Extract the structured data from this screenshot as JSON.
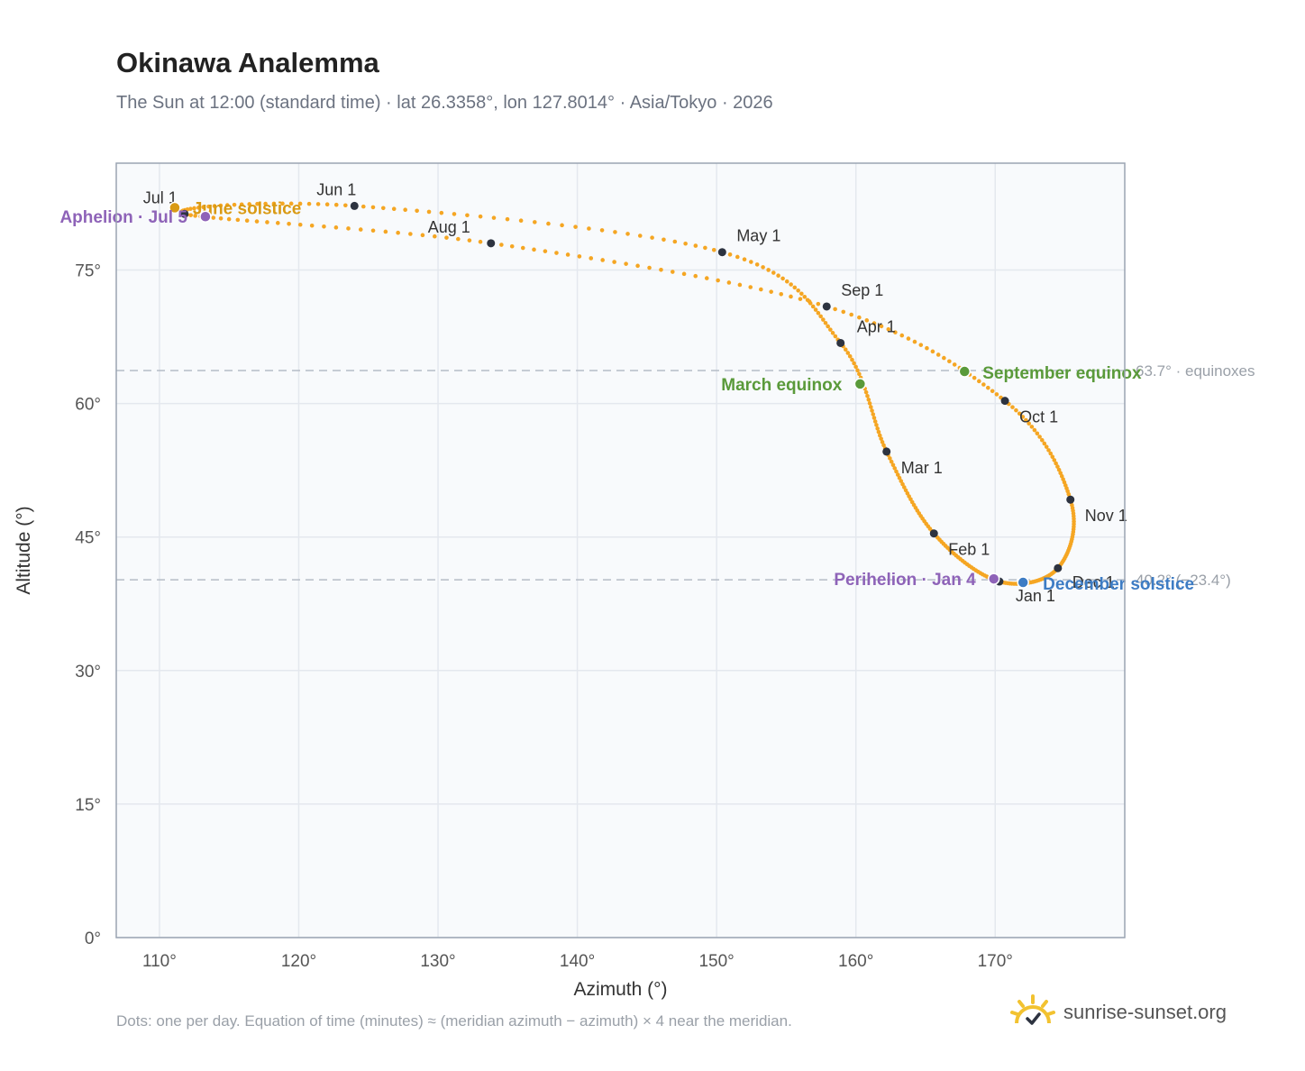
{
  "title": "Okinawa Analemma",
  "subtitle": "The Sun at 12:00 (standard time) · lat 26.3358°, lon 127.8014° · Asia/Tokyo · 2026",
  "footnote": "Dots: one per day. Equation of time (minutes) ≈ (meridian azimuth − azimuth) × 4 near the meridian.",
  "brand": {
    "name": "sunrise-sunset.org",
    "icon": "sun-check-icon"
  },
  "colors": {
    "curve": "#f5a623",
    "month": "#2d3340",
    "equinox": "#5a9a3a",
    "solstice_june": "#d99a14",
    "solstice_dec": "#3d7cc4",
    "apsis": "#8e63b8",
    "refline": "#b5bcc6",
    "plot_bg": "#f8fafc",
    "frame": "#9aa4b2",
    "grid": "#e4e8ee"
  },
  "chart_data": {
    "type": "scatter",
    "title": "Okinawa Analemma",
    "xlabel": "Azimuth (°)",
    "ylabel": "Altitude (°)",
    "xlim": [
      106.9,
      179.3
    ],
    "ylim": [
      0,
      87
    ],
    "xticks": [
      110,
      120,
      130,
      140,
      150,
      160,
      170
    ],
    "xtick_labels": [
      "110°",
      "120°",
      "130°",
      "140°",
      "150°",
      "160°",
      "170°"
    ],
    "yticks": [
      0,
      15,
      30,
      45,
      60,
      75
    ],
    "ytick_labels": [
      "0°",
      "15°",
      "30°",
      "45°",
      "60°",
      "75°"
    ],
    "grid": true,
    "months": [
      {
        "label": "Jan 1",
        "az": 170.3,
        "alt": 40.0
      },
      {
        "label": "Feb 1",
        "az": 165.6,
        "alt": 45.4
      },
      {
        "label": "Mar 1",
        "az": 162.2,
        "alt": 54.6
      },
      {
        "label": "Apr 1",
        "az": 158.9,
        "alt": 66.8
      },
      {
        "label": "May 1",
        "az": 150.4,
        "alt": 77.0
      },
      {
        "label": "Jun 1",
        "az": 124.0,
        "alt": 82.2
      },
      {
        "label": "Jul 1",
        "az": 111.8,
        "alt": 81.3
      },
      {
        "label": "Aug 1",
        "az": 133.8,
        "alt": 78.0
      },
      {
        "label": "Sep 1",
        "az": 157.9,
        "alt": 70.9
      },
      {
        "label": "Oct 1",
        "az": 170.7,
        "alt": 60.3
      },
      {
        "label": "Nov 1",
        "az": 175.4,
        "alt": 49.2
      },
      {
        "label": "Dec 1",
        "az": 174.5,
        "alt": 41.5
      }
    ],
    "events": [
      {
        "label": "March equinox",
        "az": 160.3,
        "alt": 62.2,
        "kind": "equinox"
      },
      {
        "label": "September equinox",
        "az": 167.8,
        "alt": 63.6,
        "kind": "equinox"
      },
      {
        "label": "June solstice",
        "az": 111.1,
        "alt": 82.0,
        "kind": "solstice_june"
      },
      {
        "label": "December solstice",
        "az": 172.0,
        "alt": 39.9,
        "kind": "solstice_dec"
      },
      {
        "label": "Aphelion · Jul 5",
        "az": 113.3,
        "alt": 81.0,
        "kind": "apsis"
      },
      {
        "label": "Perihelion · Jan 4",
        "az": 169.9,
        "alt": 40.3,
        "kind": "apsis"
      }
    ],
    "reference_lines": [
      {
        "alt": 63.7,
        "label": "63.7° · equinoxes"
      },
      {
        "alt": 40.2,
        "label": "40.2° (−23.4°)"
      }
    ]
  }
}
